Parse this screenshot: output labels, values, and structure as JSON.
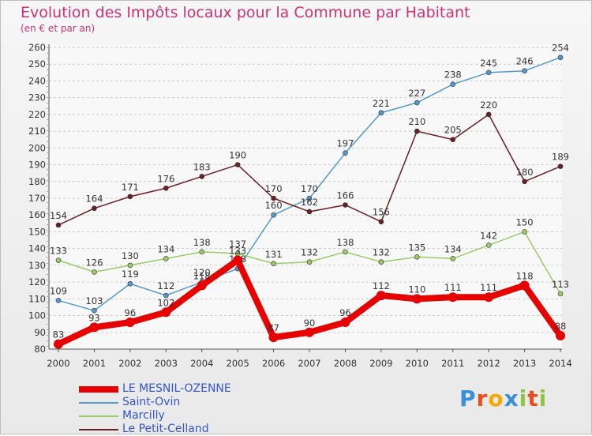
{
  "chart_data": {
    "type": "line",
    "title": "Evolution des Impôts locaux pour la Commune par Habitant",
    "subtitle": "(en € et par an)",
    "xlabel": "",
    "ylabel": "",
    "ylim": [
      80,
      260
    ],
    "ytick_step": 10,
    "x": [
      "2000",
      "2001",
      "2002",
      "2003",
      "2004",
      "2005",
      "2006",
      "2007",
      "2008",
      "2009",
      "2010",
      "2011",
      "2012",
      "2013",
      "2014"
    ],
    "series": [
      {
        "name": "LE MESNIL-OZENNE",
        "color": "#e60000",
        "width": 8,
        "marker": 6,
        "values": [
          83,
          93,
          96,
          102,
          118,
          133,
          87,
          90,
          96,
          112,
          110,
          111,
          111,
          118,
          88
        ]
      },
      {
        "name": "Saint-Ovin",
        "color": "#5599cc",
        "width": 1.5,
        "marker": 3,
        "values": [
          109,
          103,
          119,
          112,
          120,
          128,
          160,
          170,
          197,
          221,
          227,
          238,
          245,
          246,
          254
        ]
      },
      {
        "name": "Marcilly",
        "color": "#99cc66",
        "width": 1.5,
        "marker": 3,
        "values": [
          133,
          126,
          130,
          134,
          138,
          137,
          131,
          132,
          138,
          132,
          135,
          134,
          142,
          150,
          113
        ]
      },
      {
        "name": "Le Petit-Celland",
        "color": "#6b1e24",
        "width": 1.5,
        "marker": 3,
        "values": [
          154,
          164,
          171,
          176,
          183,
          190,
          170,
          162,
          166,
          156,
          210,
          205,
          220,
          180,
          189
        ]
      }
    ],
    "legend_position": "bottom-left",
    "grid": "horizontal-dashed"
  },
  "logo": {
    "text": "Proxiti",
    "letters": [
      "P",
      "r",
      "o",
      "x",
      "i",
      "t",
      "i"
    ],
    "colors": [
      "#3b8fd9",
      "#e84e1b",
      "#f6a800",
      "#3b8fd9",
      "#8dc63f",
      "#e84e1b",
      "#8dc63f"
    ]
  }
}
